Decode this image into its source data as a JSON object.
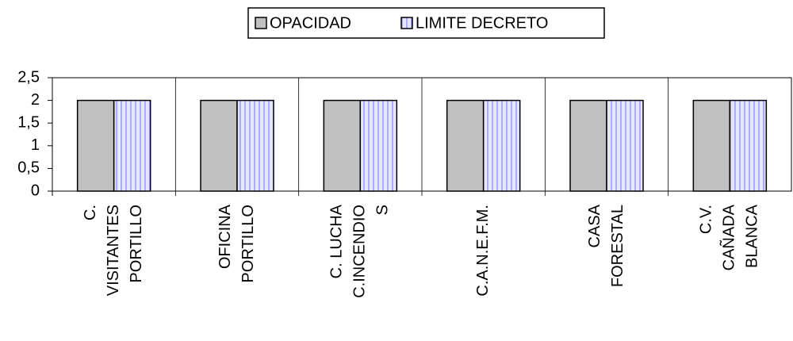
{
  "chart_data": {
    "type": "bar",
    "categories": [
      [
        "C.",
        "VISITANTES",
        "PORTILLO"
      ],
      [
        "OFICINA",
        "PORTILLO"
      ],
      [
        "C. LUCHA",
        "C.INCENDIO",
        "S"
      ],
      [
        "C.A.N.E.F.M."
      ],
      [
        "CASA",
        "FORESTAL"
      ],
      [
        "C.V.",
        "CAÑADA",
        "BLANCA"
      ]
    ],
    "series": [
      {
        "name": "OPACIDAD",
        "color": "#c0c0c0",
        "values": [
          2,
          2,
          2,
          2,
          2,
          2
        ]
      },
      {
        "name": "LIMITE DECRETO",
        "color": "#e6e6ff",
        "stripe": "#9999ff",
        "values": [
          2,
          2,
          2,
          2,
          2,
          2
        ]
      }
    ],
    "ylim": [
      0,
      2.5
    ],
    "yticks": [
      0,
      {
        "value": 0.5,
        "label": "0,5"
      },
      1,
      {
        "value": 1.5,
        "label": "1,5"
      },
      2,
      {
        "value": 2.5,
        "label": "2,5"
      }
    ],
    "legend": "top"
  }
}
